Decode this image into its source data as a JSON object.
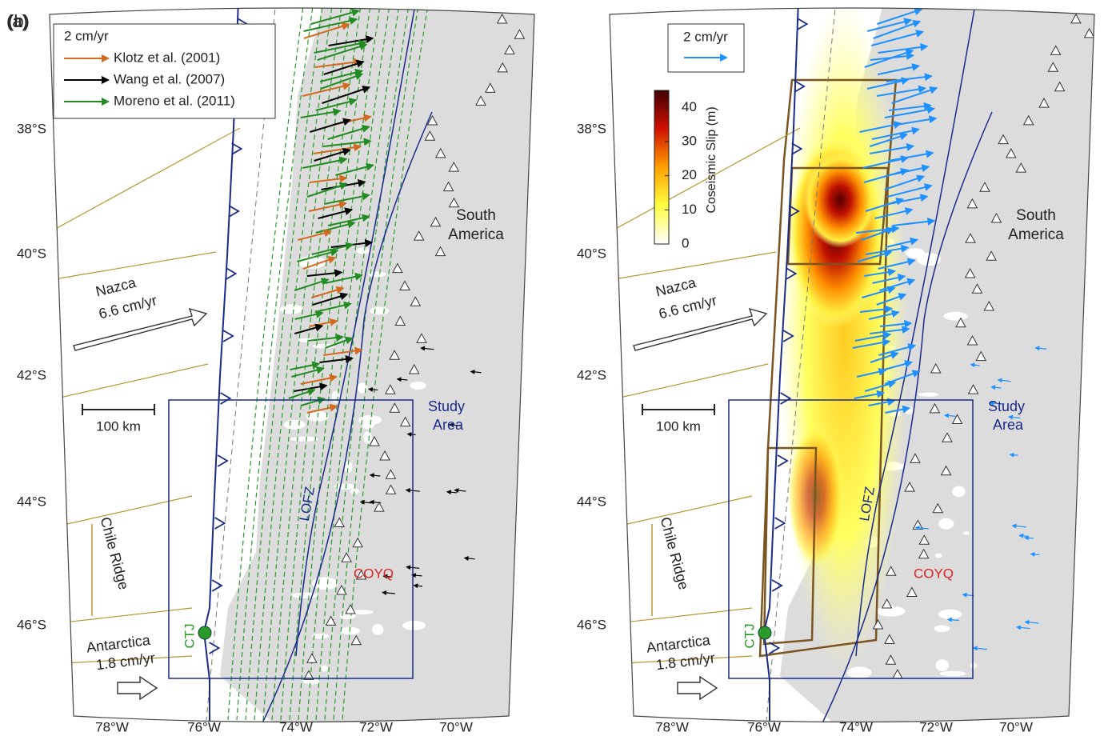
{
  "panels": [
    {
      "label": "(a)",
      "legend": {
        "title": "2 cm/yr",
        "entries": [
          {
            "name": "Klotz et al. (2001)",
            "color": "#d2691e"
          },
          {
            "name": "Wang et al. (2007)",
            "color": "#000000"
          },
          {
            "name": "Moreno et al. (2011)",
            "color": "#228b22"
          }
        ]
      },
      "lat_ticks": [
        "38°S",
        "40°S",
        "42°S",
        "44°S",
        "46°S"
      ],
      "lon_ticks": [
        "78°W",
        "76°W",
        "74°W",
        "72°W",
        "70°W"
      ],
      "labels": {
        "continent": [
          "South",
          "America"
        ],
        "nazca": [
          "Nazca",
          "6.6 cm/yr"
        ],
        "antarctica": [
          "Antarctica",
          "1.8 cm/yr"
        ],
        "scale": "100 km",
        "study_area": [
          "Study",
          "Area"
        ],
        "fault": "LOFZ",
        "ridge": "Chile Ridge",
        "junction": "CTJ",
        "station": "COYQ"
      }
    },
    {
      "label": "(b)",
      "legend": {
        "title": "2 cm/yr",
        "entries": [
          {
            "name": null,
            "color": "#1e90ff"
          }
        ]
      },
      "lat_ticks": [
        "38°S",
        "40°S",
        "42°S",
        "44°S",
        "46°S"
      ],
      "lon_ticks": [
        "78°W",
        "76°W",
        "74°W",
        "72°W",
        "70°W"
      ],
      "labels": {
        "continent": [
          "South",
          "America"
        ],
        "nazca": [
          "Nazca",
          "6.6 cm/yr"
        ],
        "antarctica": [
          "Antarctica",
          "1.8 cm/yr"
        ],
        "scale": "100 km",
        "study_area": [
          "Study",
          "Area"
        ],
        "fault": "LOFZ",
        "ridge": "Chile Ridge",
        "junction": "CTJ",
        "station": "COYQ"
      },
      "colorbar": {
        "label": "Coseismic Slip (m)",
        "range": [
          0,
          45
        ],
        "ticks": [
          0,
          10,
          20,
          30,
          40
        ]
      }
    }
  ]
}
